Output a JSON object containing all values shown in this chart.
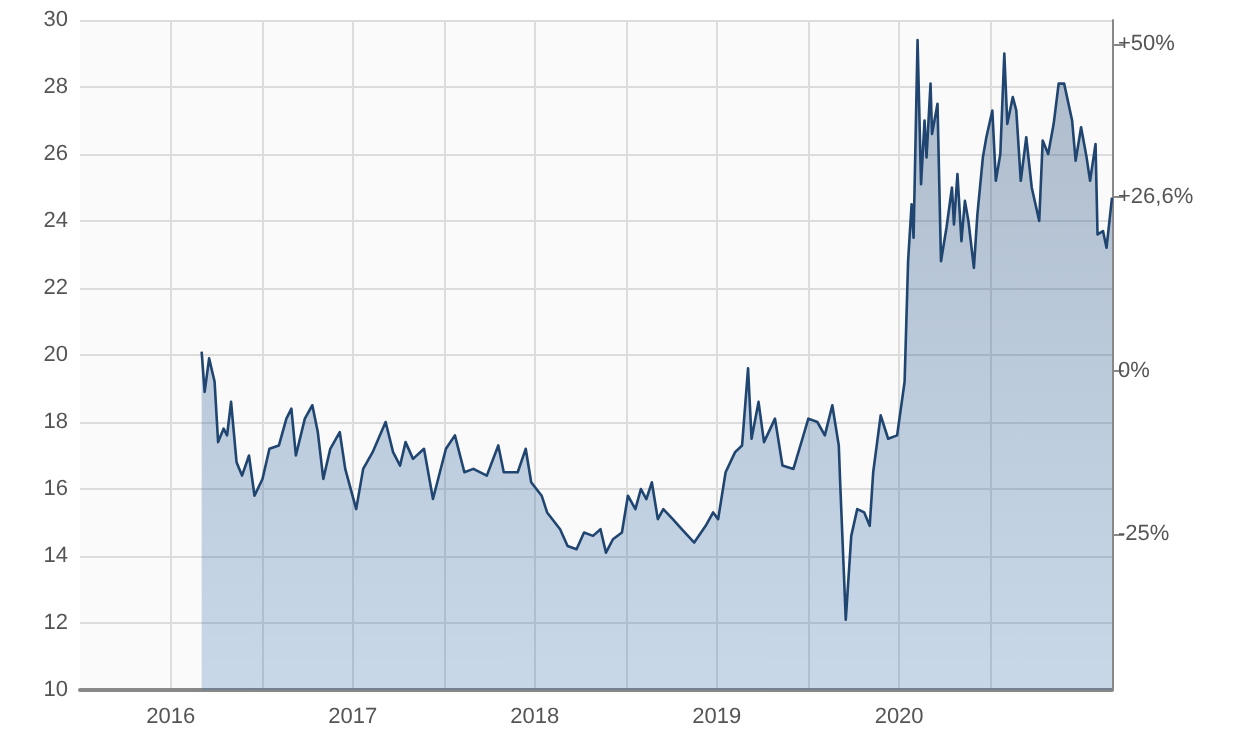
{
  "chart_data": {
    "type": "area",
    "x": [
      "2016-09-01",
      "2016-09-07",
      "2016-09-16",
      "2016-09-27",
      "2016-10-04",
      "2016-10-15",
      "2016-10-22",
      "2016-10-30",
      "2016-11-10",
      "2016-11-21",
      "2016-12-05",
      "2016-12-16",
      "2017-01-01",
      "2017-01-15",
      "2017-02-03",
      "2017-02-18",
      "2017-02-28",
      "2017-03-09",
      "2017-03-27",
      "2017-04-11",
      "2017-04-22",
      "2017-05-03",
      "2017-05-17",
      "2017-06-05",
      "2017-06-16",
      "2017-07-08",
      "2017-07-22",
      "2017-08-10",
      "2017-09-05",
      "2017-09-20",
      "2017-10-04",
      "2017-10-15",
      "2017-10-30",
      "2017-11-21",
      "2017-12-09",
      "2018-01-04",
      "2018-01-22",
      "2018-02-10",
      "2018-02-28",
      "2018-03-27",
      "2018-04-19",
      "2018-04-30",
      "2018-05-28",
      "2018-06-13",
      "2018-06-24",
      "2018-07-15",
      "2018-07-26",
      "2018-08-21",
      "2018-09-05",
      "2018-09-23",
      "2018-10-08",
      "2018-10-26",
      "2018-11-10",
      "2018-11-21",
      "2018-12-05",
      "2018-12-23",
      "2019-01-04",
      "2019-01-19",
      "2019-01-30",
      "2019-02-10",
      "2019-02-21",
      "2019-03-05",
      "2019-03-16",
      "2019-04-04",
      "2019-04-22",
      "2019-05-17",
      "2019-06-09",
      "2019-06-24",
      "2019-07-04",
      "2019-07-19",
      "2019-08-07",
      "2019-08-21",
      "2019-09-02",
      "2019-09-09",
      "2019-09-23",
      "2019-10-04",
      "2019-10-26",
      "2019-11-10",
      "2019-12-02",
      "2019-12-20",
      "2020-01-01",
      "2020-01-19",
      "2020-02-03",
      "2020-02-18",
      "2020-03-02",
      "2020-03-05",
      "2020-03-16",
      "2020-03-27",
      "2020-04-08",
      "2020-04-22",
      "2020-05-03",
      "2020-05-10",
      "2020-05-25",
      "2020-06-09",
      "2020-06-27",
      "2020-07-12",
      "2020-07-19",
      "2020-07-26",
      "2020-07-30",
      "2020-08-07",
      "2020-08-14",
      "2020-08-21",
      "2020-08-25",
      "2020-09-02",
      "2020-09-05",
      "2020-09-16",
      "2020-09-23",
      "2020-10-04",
      "2020-10-15",
      "2020-10-19",
      "2020-10-26",
      "2020-11-03",
      "2020-11-10",
      "2020-11-17",
      "2020-11-28",
      "2020-12-05",
      "2020-12-16",
      "2020-12-23",
      "2021-01-04",
      "2021-01-11",
      "2021-01-20",
      "2021-01-28",
      "2021-02-03",
      "2021-02-14",
      "2021-02-21",
      "2021-03-02",
      "2021-03-13",
      "2021-03-24",
      "2021-04-08",
      "2021-04-15",
      "2021-04-26",
      "2021-05-07",
      "2021-05-17",
      "2021-05-28",
      "2021-06-13",
      "2021-06-20",
      "2021-07-01",
      "2021-07-12",
      "2021-07-19",
      "2021-07-30",
      "2021-08-03",
      "2021-08-14",
      "2021-08-21",
      "2021-09-01"
    ],
    "series": [
      {
        "color": "#1f4570",
        "values": [
          20.1,
          18.9,
          19.9,
          19.2,
          17.4,
          17.8,
          17.6,
          18.6,
          16.8,
          16.4,
          17.0,
          15.8,
          16.3,
          17.2,
          17.3,
          18.1,
          18.4,
          17.0,
          18.1,
          18.5,
          17.7,
          16.3,
          17.2,
          17.7,
          16.6,
          15.4,
          16.6,
          17.1,
          18.0,
          17.1,
          16.7,
          17.4,
          16.9,
          17.2,
          15.7,
          17.2,
          17.6,
          16.5,
          16.6,
          16.4,
          17.3,
          16.5,
          16.5,
          17.2,
          16.2,
          15.8,
          15.3,
          14.8,
          14.3,
          14.2,
          14.7,
          14.6,
          14.8,
          14.1,
          14.5,
          14.7,
          15.8,
          15.4,
          16.0,
          15.7,
          16.2,
          15.1,
          15.4,
          15.1,
          14.8,
          14.4,
          14.9,
          15.3,
          15.1,
          16.5,
          17.1,
          17.3,
          19.6,
          17.5,
          18.6,
          17.4,
          18.1,
          16.7,
          16.6,
          17.5,
          18.1,
          18.0,
          17.6,
          18.5,
          17.3,
          16.1,
          12.1,
          14.6,
          15.4,
          15.3,
          14.9,
          16.5,
          18.2,
          17.5,
          17.6,
          19.2,
          22.8,
          24.5,
          23.5,
          29.4,
          25.1,
          27.0,
          25.9,
          28.1,
          26.6,
          27.5,
          22.8,
          23.8,
          25.0,
          23.9,
          25.4,
          23.4,
          24.6,
          24.0,
          22.6,
          24.2,
          25.9,
          26.5,
          27.3,
          25.2,
          26.0,
          29.0,
          26.9,
          27.7,
          27.3,
          25.2,
          26.5,
          25.0,
          24.0,
          26.4,
          26.0,
          26.9,
          28.1,
          28.1,
          27.0,
          25.8,
          26.8,
          25.9,
          25.2,
          26.3,
          23.6,
          23.7,
          23.2,
          24.7
        ]
      }
    ],
    "xlim": [
      "2016-01-01",
      "2021-09-01"
    ],
    "xticks": [
      {
        "value": "2016-07-01",
        "label": "2016"
      },
      {
        "value": "2017-01-01",
        "label": null
      },
      {
        "value": "2017-07-01",
        "label": "2017"
      },
      {
        "value": "2018-01-01",
        "label": null
      },
      {
        "value": "2018-07-01",
        "label": "2018"
      },
      {
        "value": "2019-01-01",
        "label": null
      },
      {
        "value": "2019-07-01",
        "label": "2019"
      },
      {
        "value": "2020-01-01",
        "label": null
      },
      {
        "value": "2020-07-01",
        "label": "2020"
      },
      {
        "value": "2021-01-01",
        "label": null
      }
    ],
    "ylim": [
      10,
      30
    ],
    "yticks": [
      10,
      12,
      14,
      16,
      18,
      20,
      22,
      24,
      26,
      28,
      30
    ],
    "y2lim": [
      -48.8,
      53.6
    ],
    "y2ticks": [
      {
        "value": -25,
        "label": "-25%"
      },
      {
        "value": 0,
        "label": "0%"
      },
      {
        "value": 26.6,
        "label": "+26,6%"
      },
      {
        "value": 50,
        "label": "+50%"
      }
    ],
    "grid": true
  }
}
